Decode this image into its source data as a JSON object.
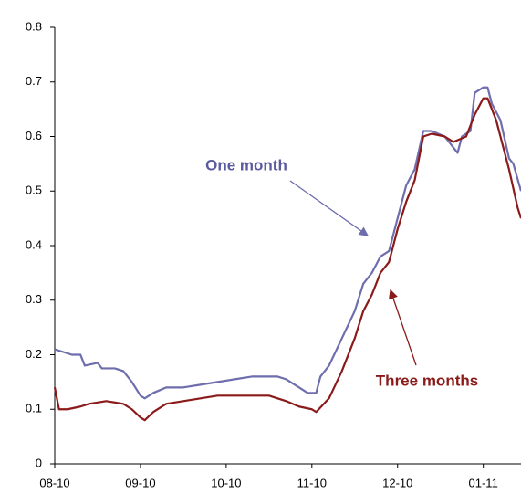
{
  "chart_data": {
    "type": "line",
    "series": [
      {
        "name": "One month",
        "color": "#6e6eae",
        "x": [
          0,
          0.1,
          0.2,
          0.3,
          0.35,
          0.5,
          0.55,
          0.7,
          0.8,
          0.9,
          1.0,
          1.05,
          1.15,
          1.3,
          1.5,
          1.7,
          1.9,
          2.1,
          2.3,
          2.6,
          2.7,
          2.85,
          2.95,
          3.05,
          3.1,
          3.2,
          3.35,
          3.5,
          3.6,
          3.7,
          3.8,
          3.9,
          4.0,
          4.1,
          4.2,
          4.3,
          4.4,
          4.55,
          4.7,
          4.75,
          4.85,
          4.9,
          5.0,
          5.05,
          5.1,
          5.2,
          5.3,
          5.35,
          5.44
        ],
        "values": [
          0.21,
          0.205,
          0.2,
          0.2,
          0.18,
          0.185,
          0.175,
          0.175,
          0.17,
          0.15,
          0.125,
          0.12,
          0.13,
          0.14,
          0.14,
          0.145,
          0.15,
          0.155,
          0.16,
          0.16,
          0.155,
          0.14,
          0.13,
          0.13,
          0.16,
          0.18,
          0.23,
          0.28,
          0.33,
          0.35,
          0.38,
          0.39,
          0.45,
          0.51,
          0.54,
          0.61,
          0.61,
          0.6,
          0.57,
          0.6,
          0.61,
          0.68,
          0.69,
          0.69,
          0.66,
          0.63,
          0.56,
          0.55,
          0.5
        ]
      },
      {
        "name": "Three months",
        "color": "#8b1a1a",
        "x": [
          0,
          0.05,
          0.15,
          0.3,
          0.4,
          0.6,
          0.8,
          0.9,
          1.0,
          1.05,
          1.15,
          1.3,
          1.5,
          1.7,
          1.9,
          2.2,
          2.5,
          2.7,
          2.85,
          3.0,
          3.05,
          3.2,
          3.35,
          3.5,
          3.6,
          3.7,
          3.8,
          3.9,
          4.0,
          4.1,
          4.2,
          4.3,
          4.4,
          4.55,
          4.65,
          4.8,
          4.9,
          5.0,
          5.05,
          5.15,
          5.2,
          5.3,
          5.4,
          5.44
        ],
        "values": [
          0.14,
          0.1,
          0.1,
          0.105,
          0.11,
          0.115,
          0.11,
          0.1,
          0.085,
          0.08,
          0.095,
          0.11,
          0.115,
          0.12,
          0.125,
          0.125,
          0.125,
          0.115,
          0.105,
          0.1,
          0.095,
          0.12,
          0.17,
          0.23,
          0.28,
          0.31,
          0.35,
          0.37,
          0.43,
          0.48,
          0.52,
          0.6,
          0.605,
          0.6,
          0.59,
          0.6,
          0.64,
          0.67,
          0.67,
          0.63,
          0.6,
          0.54,
          0.47,
          0.45
        ]
      }
    ],
    "xlim": [
      0,
      5.44
    ],
    "xticks": [
      {
        "value": 0,
        "label": "08-10"
      },
      {
        "value": 1,
        "label": "09-10"
      },
      {
        "value": 2,
        "label": "10-10"
      },
      {
        "value": 3,
        "label": "11-10"
      },
      {
        "value": 4,
        "label": "12-10"
      },
      {
        "value": 5,
        "label": "01-11"
      }
    ],
    "ylim": [
      0,
      0.8
    ],
    "yticks": [
      0,
      0.1,
      0.2,
      0.3,
      0.4,
      0.5,
      0.6,
      0.7,
      0.8
    ],
    "annotations": [
      "One month",
      "Three months"
    ]
  }
}
